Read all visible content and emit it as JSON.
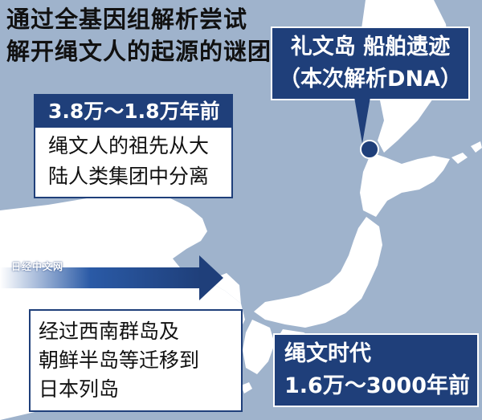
{
  "title": {
    "line1": "通过全基因组解析尝试",
    "line2": "解开绳文人的起源的谜团"
  },
  "site_label": {
    "line1": "礼文岛  船舶遗迹",
    "line2": "（本次解析DNA）"
  },
  "divergence": {
    "header": "3.8万～1.8万年前",
    "line1": "绳文人的祖先从大",
    "line2": "陆人类集团中分离"
  },
  "migration": {
    "line1": "经过西南群岛及",
    "line2": "朝鲜半岛等迁移到",
    "line3": "日本列岛"
  },
  "era": {
    "name": "绳文时代",
    "range": "1.6万～3000年前"
  },
  "watermark": "日经中文网",
  "colors": {
    "sea": "#9fb3cc",
    "land": "#ffffff",
    "accent": "#1f3f7a"
  }
}
